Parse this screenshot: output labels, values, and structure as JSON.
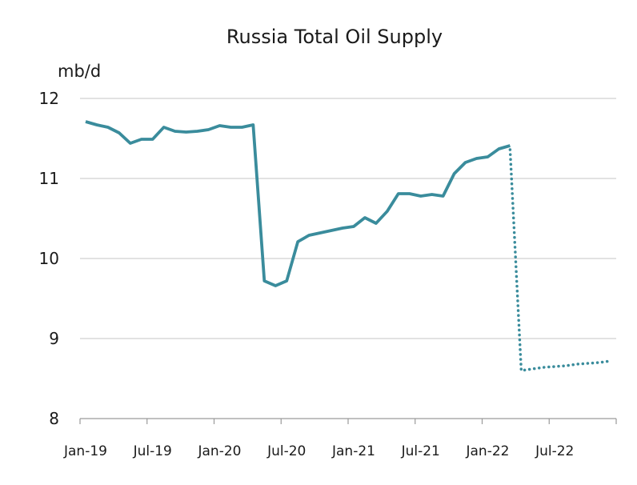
{
  "chart_data": {
    "type": "line",
    "title": "Russia Total Oil Supply",
    "ylabel": "mb/d",
    "xlabel": "",
    "ylim": [
      8,
      12
    ],
    "yticks": [
      8,
      9,
      10,
      11,
      12
    ],
    "x_tick_labels": [
      "Jan-19",
      "Jul-19",
      "Jan-20",
      "Jul-20",
      "Jan-21",
      "Jul-21",
      "Jan-22",
      "Jul-22"
    ],
    "x_start": "Jan-19",
    "x_end": "Dec-22",
    "grid": true,
    "color": "#3a8c9c",
    "series": [
      {
        "style": "solid",
        "x": [
          "Jan-19",
          "Feb-19",
          "Mar-19",
          "Apr-19",
          "May-19",
          "Jun-19",
          "Jul-19",
          "Aug-19",
          "Sep-19",
          "Oct-19",
          "Nov-19",
          "Dec-19",
          "Jan-20",
          "Feb-20",
          "Mar-20",
          "Apr-20",
          "May-20",
          "Jun-20",
          "Jul-20",
          "Aug-20",
          "Sep-20",
          "Oct-20",
          "Nov-20",
          "Dec-20",
          "Jan-21",
          "Feb-21",
          "Mar-21",
          "Apr-21",
          "May-21",
          "Jun-21",
          "Jul-21",
          "Aug-21",
          "Sep-21",
          "Oct-21",
          "Nov-21",
          "Dec-21",
          "Jan-22",
          "Feb-22",
          "Mar-22"
        ],
        "values": [
          11.71,
          11.67,
          11.64,
          11.57,
          11.44,
          11.49,
          11.49,
          11.64,
          11.59,
          11.58,
          11.59,
          11.61,
          11.66,
          11.64,
          11.64,
          11.67,
          9.72,
          9.66,
          9.72,
          10.21,
          10.29,
          10.32,
          10.35,
          10.38,
          10.4,
          10.51,
          10.44,
          10.59,
          10.81,
          10.81,
          10.78,
          10.8,
          10.78,
          11.06,
          11.2,
          11.25,
          11.27,
          11.37,
          11.41
        ]
      },
      {
        "style": "dotted",
        "x": [
          "Mar-22",
          "Apr-22",
          "May-22",
          "Jun-22",
          "Jul-22",
          "Aug-22",
          "Sep-22",
          "Oct-22",
          "Nov-22",
          "Dec-22"
        ],
        "values": [
          11.36,
          8.6,
          8.62,
          8.64,
          8.65,
          8.66,
          8.68,
          8.69,
          8.7,
          8.72
        ]
      }
    ]
  }
}
